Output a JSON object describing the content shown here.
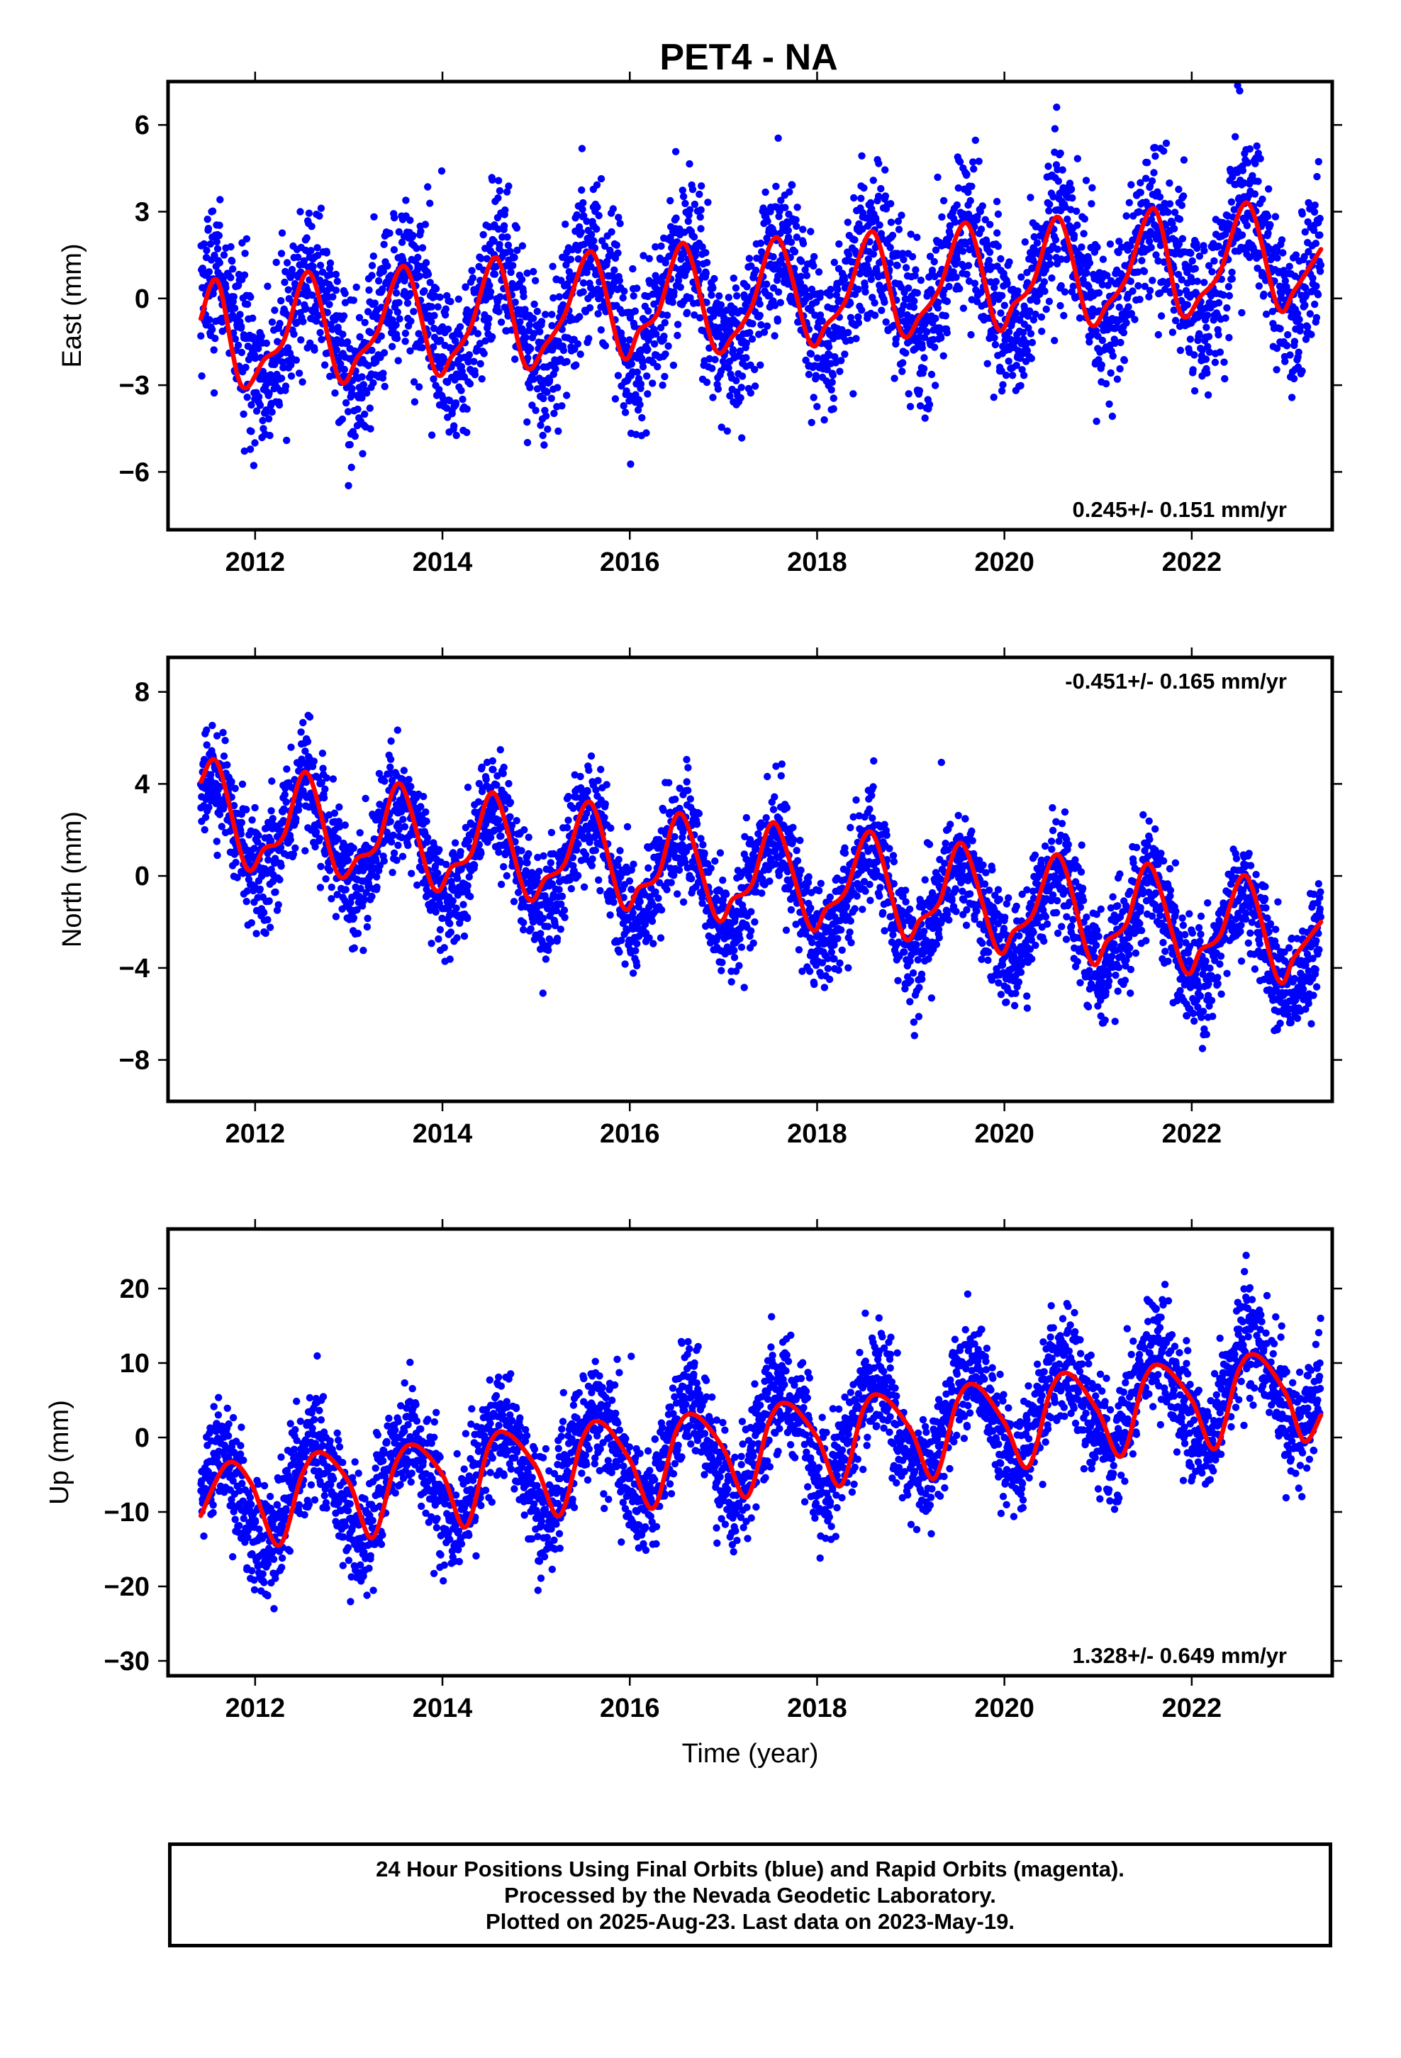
{
  "figure_title": "PET4 - NA",
  "chart_data": [
    {
      "type": "scatter",
      "component": "East",
      "ylabel": "East (mm)",
      "xlabel": "",
      "xlim": [
        2011.07,
        2023.5
      ],
      "ylim": [
        -8,
        7.5
      ],
      "xticks": [
        2012,
        2014,
        2016,
        2018,
        2020,
        2022
      ],
      "xtick_labels": [
        "2012",
        "2014",
        "2016",
        "2018",
        "2020",
        "2022"
      ],
      "yticks": [
        -6,
        -3,
        0,
        3,
        6
      ],
      "ytick_labels": [
        "−6",
        "−3",
        "0",
        "3",
        "6"
      ],
      "rate_label": "0.245+/- 0.151 mm/yr",
      "rate_position": "bottom-right",
      "series": [
        {
          "kind": "points",
          "color": "#0000ff",
          "data_start": 2011.42,
          "data_end": 2023.38,
          "model_amplitude": 1.8,
          "model_offset": -1.3,
          "model_phase_peak": 0.59,
          "model_trend_total": 2.8,
          "scatter_sd": 1.35
        },
        {
          "kind": "fit-line",
          "color": "#ff0000",
          "x": [
            2011.42,
            2011.6,
            2011.85,
            2012.1,
            2012.3,
            2012.58,
            2012.9,
            2013.1,
            2013.3,
            2013.6,
            2013.92,
            2014.1,
            2014.3,
            2014.58,
            2014.88,
            2015.1,
            2015.3,
            2015.6,
            2015.92,
            2016.1,
            2016.3,
            2016.58,
            2016.9,
            2017.1,
            2017.3,
            2017.58,
            2017.92,
            2018.1,
            2018.3,
            2018.6,
            2018.9,
            2019.1,
            2019.3,
            2019.6,
            2019.92,
            2020.1,
            2020.3,
            2020.58,
            2020.9,
            2021.1,
            2021.3,
            2021.6,
            2021.88,
            2022.1,
            2022.3,
            2022.6,
            2022.92,
            2023.1,
            2023.38
          ],
          "y": [
            -0.7,
            0.6,
            -3.0,
            -2.1,
            -1.5,
            0.9,
            -2.8,
            -2.0,
            -1.2,
            1.1,
            -2.5,
            -2.0,
            -1.0,
            1.4,
            -2.3,
            -1.6,
            -0.6,
            1.6,
            -2.0,
            -1.1,
            -0.5,
            1.9,
            -1.7,
            -1.3,
            -0.3,
            2.1,
            -1.5,
            -0.9,
            -0.1,
            2.3,
            -1.2,
            -0.6,
            0.3,
            2.6,
            -1.0,
            -0.2,
            0.5,
            2.8,
            -0.8,
            -0.2,
            0.7,
            3.1,
            -0.5,
            0.1,
            0.9,
            3.3,
            -0.3,
            0.3,
            1.7
          ]
        }
      ]
    },
    {
      "type": "scatter",
      "component": "North",
      "ylabel": "North (mm)",
      "xlabel": "",
      "xlim": [
        2011.07,
        2023.5
      ],
      "ylim": [
        -9.8,
        9.5
      ],
      "xticks": [
        2012,
        2014,
        2016,
        2018,
        2020,
        2022
      ],
      "xtick_labels": [
        "2012",
        "2014",
        "2016",
        "2018",
        "2020",
        "2022"
      ],
      "yticks": [
        -8,
        -4,
        0,
        4,
        8
      ],
      "ytick_labels": [
        "−8",
        "−4",
        "0",
        "4",
        "8"
      ],
      "rate_label": "-0.451+/- 0.165 mm/yr",
      "rate_position": "top-right",
      "series": [
        {
          "kind": "points",
          "color": "#0000ff",
          "data_start": 2011.42,
          "data_end": 2023.38,
          "model_amplitude": 2.1,
          "model_offset": 2.3,
          "model_phase_peak": 0.55,
          "model_trend_total": -5.4,
          "scatter_sd": 1.2
        },
        {
          "kind": "fit-line",
          "color": "#ff0000",
          "x": [
            2011.42,
            2011.6,
            2011.9,
            2012.1,
            2012.3,
            2012.55,
            2012.88,
            2013.1,
            2013.3,
            2013.55,
            2013.9,
            2014.1,
            2014.3,
            2014.55,
            2014.9,
            2015.1,
            2015.3,
            2015.58,
            2015.92,
            2016.1,
            2016.3,
            2016.55,
            2016.92,
            2017.1,
            2017.3,
            2017.55,
            2017.92,
            2018.1,
            2018.3,
            2018.58,
            2018.92,
            2019.1,
            2019.3,
            2019.55,
            2019.92,
            2020.1,
            2020.3,
            2020.58,
            2020.92,
            2021.1,
            2021.3,
            2021.55,
            2021.92,
            2022.1,
            2022.3,
            2022.58,
            2022.92,
            2023.1,
            2023.38
          ],
          "y": [
            4.1,
            4.9,
            0.4,
            1.2,
            1.7,
            4.5,
            0.1,
            0.8,
            1.3,
            4.0,
            -0.5,
            0.4,
            0.9,
            3.6,
            -0.9,
            -0.1,
            0.5,
            3.2,
            -1.3,
            -0.5,
            0.0,
            2.7,
            -1.8,
            -1.0,
            -0.4,
            2.3,
            -2.2,
            -1.4,
            -0.7,
            1.9,
            -2.6,
            -1.9,
            -1.2,
            1.4,
            -3.2,
            -2.4,
            -1.7,
            0.9,
            -3.7,
            -2.8,
            -2.1,
            0.5,
            -4.1,
            -3.2,
            -2.6,
            0.0,
            -4.5,
            -3.5,
            -2.0
          ]
        }
      ]
    },
    {
      "type": "scatter",
      "component": "Up",
      "ylabel": "Up (mm)",
      "xlabel": "Time (year)",
      "xlim": [
        2011.07,
        2023.5
      ],
      "ylim": [
        -32,
        28
      ],
      "xticks": [
        2012,
        2014,
        2016,
        2018,
        2020,
        2022
      ],
      "xtick_labels": [
        "2012",
        "2014",
        "2016",
        "2018",
        "2020",
        "2022"
      ],
      "yticks": [
        -30,
        -20,
        -10,
        0,
        10,
        20
      ],
      "ytick_labels": [
        "−30",
        "−20",
        "−10",
        "0",
        "10",
        "20"
      ],
      "rate_label": "1.328+/- 0.649 mm/yr",
      "rate_position": "bottom-right",
      "series": [
        {
          "kind": "points",
          "color": "#0000ff",
          "data_start": 2011.42,
          "data_end": 2023.38,
          "model_amplitude": 6.5,
          "model_offset": -9.0,
          "model_phase_peak": 0.62,
          "model_trend_total": 17.0,
          "scatter_sd": 3.8
        },
        {
          "kind": "fit-line",
          "color": "#ff0000",
          "x": [
            2011.42,
            2011.7,
            2011.95,
            2012.25,
            2012.5,
            2012.7,
            2013.0,
            2013.25,
            2013.5,
            2013.7,
            2014.0,
            2014.25,
            2014.5,
            2014.7,
            2015.0,
            2015.25,
            2015.5,
            2015.7,
            2016.0,
            2016.25,
            2016.5,
            2016.7,
            2017.0,
            2017.25,
            2017.5,
            2017.7,
            2018.0,
            2018.25,
            2018.5,
            2018.7,
            2019.0,
            2019.25,
            2019.5,
            2019.7,
            2020.0,
            2020.25,
            2020.5,
            2020.7,
            2021.0,
            2021.25,
            2021.5,
            2021.7,
            2022.0,
            2022.25,
            2022.5,
            2022.7,
            2023.0,
            2023.2,
            2023.38
          ],
          "y": [
            -10.5,
            -3.5,
            -6.0,
            -14.5,
            -5.0,
            -2.0,
            -6.0,
            -13.5,
            -3.5,
            -1.0,
            -5.0,
            -12.0,
            -1.0,
            0.5,
            -4.0,
            -10.5,
            0.0,
            2.0,
            -3.0,
            -9.5,
            1.0,
            3.0,
            -1.5,
            -8.0,
            2.5,
            4.5,
            0.0,
            -6.5,
            4.0,
            5.5,
            1.0,
            -5.5,
            5.0,
            7.0,
            2.0,
            -4.0,
            6.5,
            8.5,
            3.5,
            -2.5,
            8.0,
            9.5,
            5.0,
            -1.5,
            9.0,
            11.0,
            6.0,
            -0.5,
            3.0
          ]
        }
      ]
    }
  ],
  "footer": {
    "line1": "24 Hour Positions Using Final Orbits (blue) and Rapid Orbits (magenta).",
    "line2": "Processed by the Nevada Geodetic Laboratory.",
    "line3": "Plotted on 2025-Aug-23. Last data on 2023-May-19."
  }
}
